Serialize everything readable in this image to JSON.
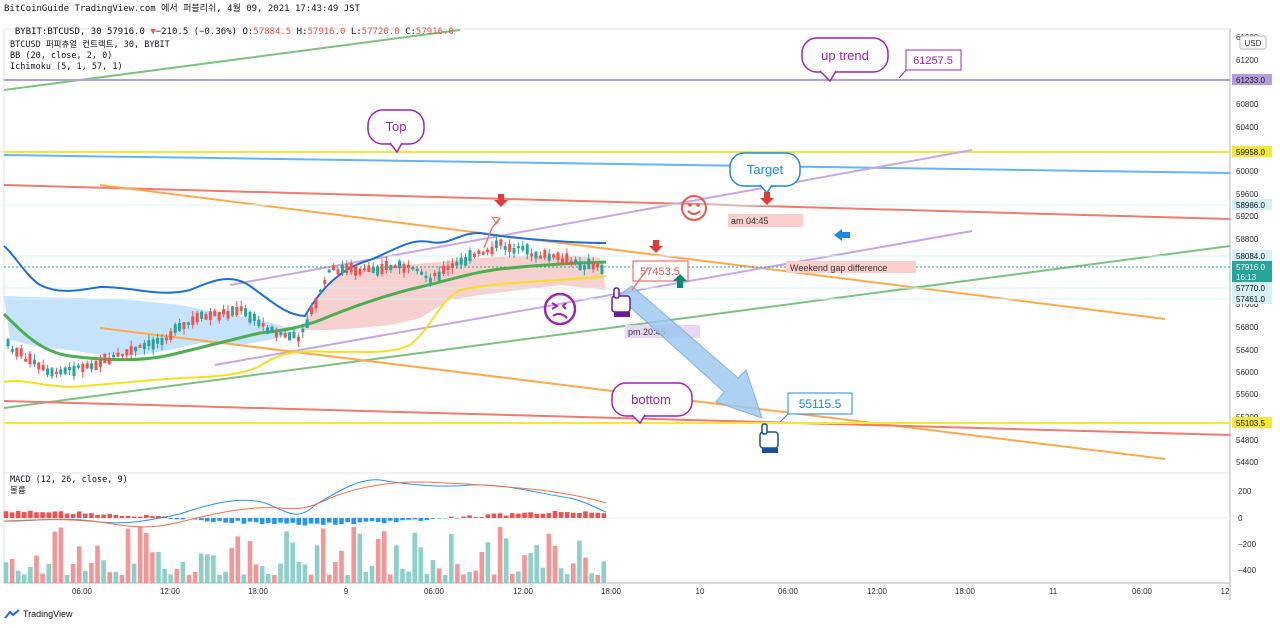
{
  "header": {
    "line1": "BitCoinGuide TradingView.com 에서 퍼블리쉬, 4월 09, 2021 17:43:49 JST",
    "symbol": "BYBIT:BTCUSD, 30 ",
    "last": "57916.0",
    "change": "−210.5 (−0.36%)",
    "o_label": "O:",
    "o": "57884.5",
    "h_label": "H:",
    "h": "57916.0",
    "l_label": "L:",
    "l": "57720.0",
    "c_label": "C:",
    "c": "57916.0"
  },
  "legend": {
    "title": "BTCUSD 퍼피츄얼 컨트랙트, 30, BYBIT",
    "bb": "BB (20, close, 2, 0)",
    "ichimoku": "Ichimoku (5, 1, 57, 1)"
  },
  "macd_legend": {
    "title": "MACD (12, 26, close, 9)",
    "sub": "볼륨"
  },
  "footer": {
    "brand": "TradingView"
  },
  "chart_data": [
    {
      "type": "candlestick",
      "currency": "USD",
      "y_ticks": [
        "61600",
        "61200",
        "60800",
        "60400",
        "60000",
        "59600",
        "59200",
        "58800",
        "58400",
        "57600",
        "56800",
        "56400",
        "56000",
        "55600",
        "55200",
        "54800",
        "54400"
      ],
      "x_ticks": [
        "06:00",
        "12:00",
        "18:00",
        "9",
        "06:00",
        "12:00",
        "18:00",
        "10",
        "06:00",
        "12:00",
        "18:00",
        "11",
        "06:00",
        "12"
      ],
      "price_labels": [
        {
          "value": "61233.0",
          "bg": "#b39ddb"
        },
        {
          "value": "59958.0",
          "bg": "#f5e63a"
        },
        {
          "value": "58986.0",
          "bg": "#d6f0f4"
        },
        {
          "value": "58084.0",
          "bg": "#d6f0f4"
        },
        {
          "value": "57916.0",
          "bg": "#26a69a",
          "extra": "16:13"
        },
        {
          "value": "57770.0",
          "bg": "#d6f0f4"
        },
        {
          "value": "57461.0",
          "bg": "#d6f0f4"
        },
        {
          "value": "55103.5",
          "bg": "#f5e63a"
        }
      ],
      "annotations": {
        "up_trend": "up trend",
        "top": "Top",
        "target": "Target",
        "bottom": "bottom",
        "price_61257": "61257.5",
        "price_57453": "57453.5",
        "price_55115": "55115.5",
        "am_time": "am 04:45",
        "pm_time": "pm 20:45",
        "weekend_gap": "Weekend gap difference"
      },
      "colors": {
        "up": "#26a69a",
        "down": "#ef5350",
        "bb_upper": "#1e6fd8",
        "ma": "#4caf50",
        "cloud": "#f6c8c8",
        "cloud_bear": "#bbdefb",
        "yellow_line": "#f5e020"
      }
    },
    {
      "type": "macd",
      "y_ticks": [
        "200",
        "0",
        "−200",
        "−400"
      ],
      "colors": {
        "macd": "#2196f3",
        "signal": "#ff7043",
        "hist_pos": "#ef5350",
        "hist_neg": "#2196f3",
        "vol_up": "#80cbc4",
        "vol_down": "#f28b8b"
      }
    }
  ]
}
